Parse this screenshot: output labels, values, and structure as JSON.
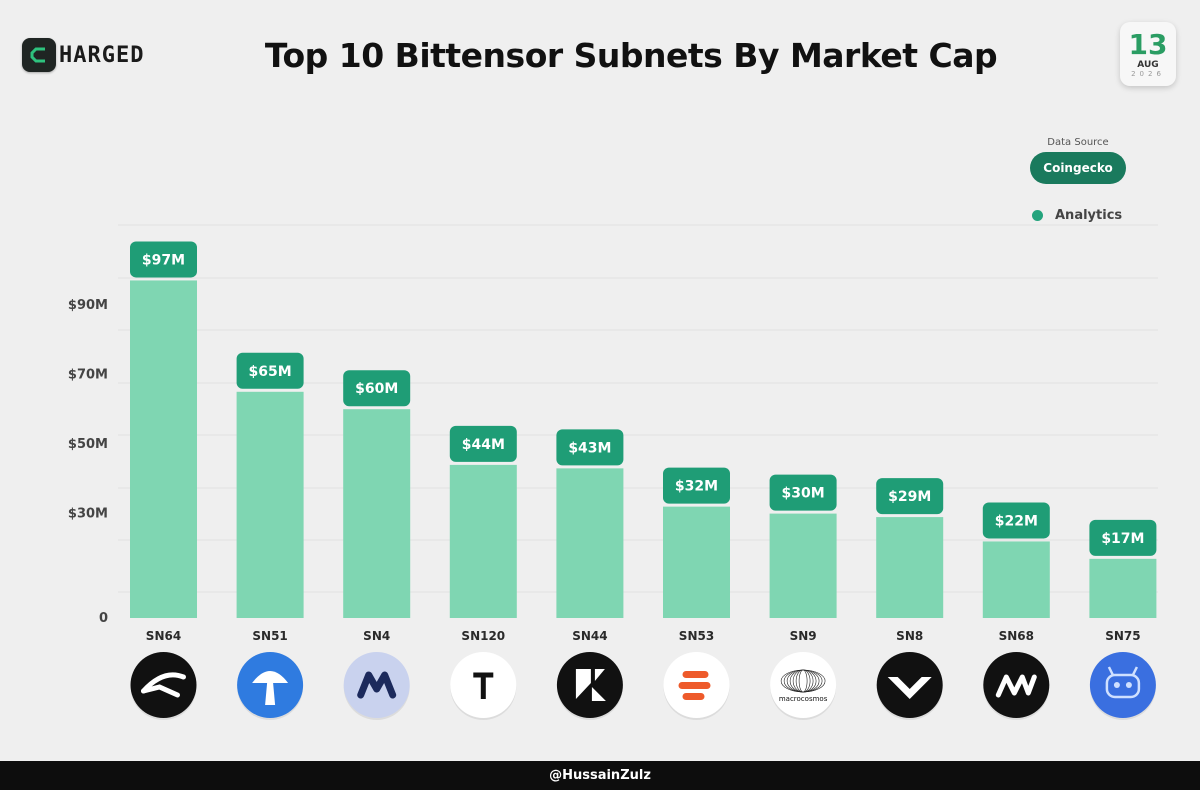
{
  "brand": {
    "logo_letter": "C",
    "logo_text": "HARGED"
  },
  "header": {
    "title": "Top 10 Bittensor Subnets By Market Cap"
  },
  "calendar": {
    "day": "13",
    "month": "AUG",
    "year": "2026"
  },
  "source": {
    "label": "Data Source",
    "name": "Coingecko"
  },
  "legend": {
    "label": "Analytics"
  },
  "colors": {
    "bar": "#7fd6b2",
    "label_bg": "#1f9d76",
    "accent": "#2a9d63",
    "legend_dot": "#23a37c"
  },
  "footer": {
    "handle": "@HussainZulz"
  },
  "chart_data": {
    "type": "bar",
    "title": "Top 10 Bittensor Subnets By Market Cap",
    "categories": [
      "SN64",
      "SN51",
      "SN4",
      "SN120",
      "SN44",
      "SN53",
      "SN9",
      "SN8",
      "SN68",
      "SN75"
    ],
    "values": [
      97,
      65,
      60,
      44,
      43,
      32,
      30,
      29,
      22,
      17
    ],
    "value_labels": [
      "$97M",
      "$65M",
      "$60M",
      "$44M",
      "$43M",
      "$32M",
      "$30M",
      "$29M",
      "$22M",
      "$17M"
    ],
    "unit": "$M",
    "y_ticks": [
      0,
      30,
      50,
      70,
      90
    ],
    "y_tick_labels": [
      "0",
      "$30M",
      "$50M",
      "$70M",
      "$90M"
    ],
    "ylim": [
      0,
      100
    ],
    "grid": true,
    "legend_position": "top-right",
    "icons": [
      "sn64-logo-icon",
      "sn51-mushroom-logo-icon",
      "sn4-logo-icon",
      "sn120-t-logo-icon",
      "sn44-logo-icon",
      "sn53-logo-icon",
      "sn9-macrocosmos-logo-icon",
      "sn8-chevron-logo-icon",
      "sn68-logo-icon",
      "sn75-logo-icon"
    ],
    "icon_text": {
      "SN9": "macrocosmos"
    }
  }
}
